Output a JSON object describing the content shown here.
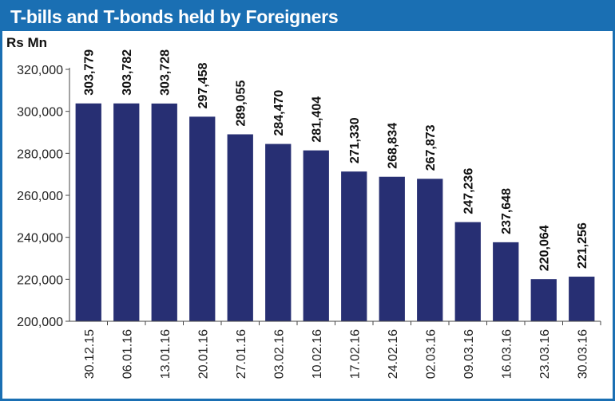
{
  "chart_data": {
    "type": "bar",
    "title": "T-bills and T-bonds held by Foreigners",
    "ylabel": "Rs Mn",
    "xlabel": "",
    "ylim": [
      200000,
      320000
    ],
    "yticks": [
      "200,000",
      "220,000",
      "240,000",
      "260,000",
      "280,000",
      "300,000",
      "320,000"
    ],
    "ytick_values": [
      200000,
      220000,
      240000,
      260000,
      280000,
      300000,
      320000
    ],
    "categories": [
      "30.12.15",
      "06.01.16",
      "13.01.16",
      "20.01.16",
      "27.01.16",
      "03.02.16",
      "10.02.16",
      "17.02.16",
      "24.02.16",
      "02.03.16",
      "09.03.16",
      "16.03.16",
      "23.03.16",
      "30.03.16"
    ],
    "values": [
      303779,
      303782,
      303728,
      297458,
      289055,
      284470,
      281404,
      271330,
      268834,
      267873,
      247236,
      237648,
      220064,
      221256
    ],
    "value_labels": [
      "303,779",
      "303,782",
      "303,728",
      "297,458",
      "289,055",
      "284,470",
      "281,404",
      "271,330",
      "268,834",
      "267,873",
      "247,236",
      "237,648",
      "220,064",
      "221,256"
    ],
    "bar_color": "#272f73",
    "grid": false,
    "legend": "none"
  },
  "colors": {
    "title_bar": "#1a6fb3",
    "title_text": "#ffffff",
    "bar": "#272f73",
    "axis": "#444444"
  }
}
